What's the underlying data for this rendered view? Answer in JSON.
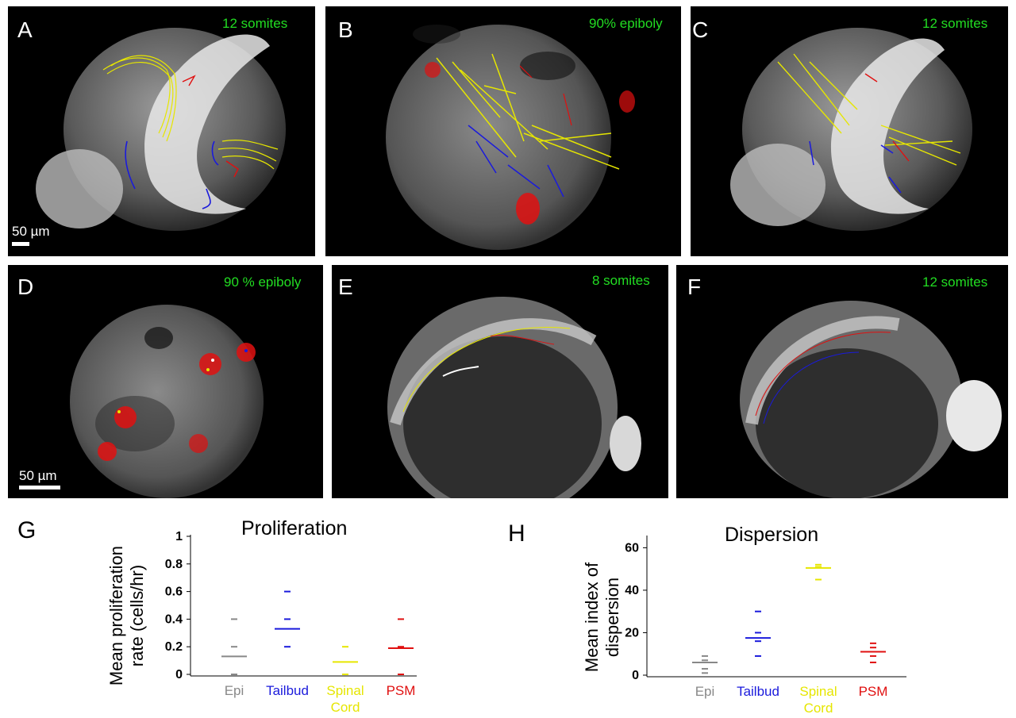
{
  "panels": [
    {
      "letter": "A",
      "stage": "12 somites",
      "scale": "50 µm"
    },
    {
      "letter": "B",
      "stage": "90% epiboly",
      "scale": ""
    },
    {
      "letter": "C",
      "stage": "12 somites",
      "scale": ""
    },
    {
      "letter": "D",
      "stage": "90 % epiboly",
      "scale": "50 µm"
    },
    {
      "letter": "E",
      "stage": "8 somites",
      "scale": ""
    },
    {
      "letter": "F",
      "stage": "12 somites",
      "scale": ""
    }
  ],
  "colors": {
    "epi": "#888888",
    "tailbud": "#1a1adc",
    "spinal": "#e6e600",
    "psm": "#e01010",
    "stage_text": "#22dd22"
  },
  "chart_data": [
    {
      "type": "scatter",
      "letter": "G",
      "title": "Proliferation",
      "ylabel": "Mean proliferation rate (cells/hr)",
      "ylabel_lines": [
        "Mean proliferation",
        "rate (cells/hr)"
      ],
      "ylim": [
        0,
        1
      ],
      "yticks": [
        "0",
        "0.2",
        "0.4",
        "0.6",
        "0.8",
        "1"
      ],
      "categories": [
        {
          "label": "Epi",
          "lines": [
            "Epi"
          ],
          "color": "#888888"
        },
        {
          "label": "Tailbud",
          "lines": [
            "Tailbud"
          ],
          "color": "#1a1adc"
        },
        {
          "label": "Spinal Cord",
          "lines": [
            "Spinal",
            "Cord"
          ],
          "color": "#e6e600"
        },
        {
          "label": "PSM",
          "lines": [
            "PSM"
          ],
          "color": "#e01010"
        }
      ],
      "series": [
        {
          "points": [
            0.4,
            0.2,
            0
          ],
          "mean": 0.13
        },
        {
          "points": [
            0.6,
            0.4,
            0.2
          ],
          "mean": 0.33
        },
        {
          "points": [
            0.2,
            0
          ],
          "mean": 0.09
        },
        {
          "points": [
            0.4,
            0.2,
            0
          ],
          "mean": 0.19
        }
      ]
    },
    {
      "type": "scatter",
      "letter": "H",
      "title": "Dispersion",
      "ylabel": "Mean index of dispersion",
      "ylabel_lines": [
        "Mean index of",
        "dispersion"
      ],
      "ylim": [
        0,
        65
      ],
      "yticks": [
        "0",
        "20",
        "40",
        "60"
      ],
      "yticks_values": [
        0,
        20,
        40,
        60
      ],
      "categories": [
        {
          "label": "Epi",
          "lines": [
            "Epi"
          ],
          "color": "#888888"
        },
        {
          "label": "Tailbud",
          "lines": [
            "Tailbud"
          ],
          "color": "#1a1adc"
        },
        {
          "label": "Spinal Cord",
          "lines": [
            "Spinal",
            "Cord"
          ],
          "color": "#e6e600"
        },
        {
          "label": "PSM",
          "lines": [
            "PSM"
          ],
          "color": "#e01010"
        }
      ],
      "series": [
        {
          "points": [
            9,
            7,
            3,
            1
          ],
          "mean": 6
        },
        {
          "points": [
            30,
            20,
            16,
            9
          ],
          "mean": 17.5
        },
        {
          "points": [
            52,
            51,
            45
          ],
          "mean": 50.5
        },
        {
          "points": [
            15,
            13,
            9,
            6
          ],
          "mean": 11
        }
      ]
    }
  ]
}
